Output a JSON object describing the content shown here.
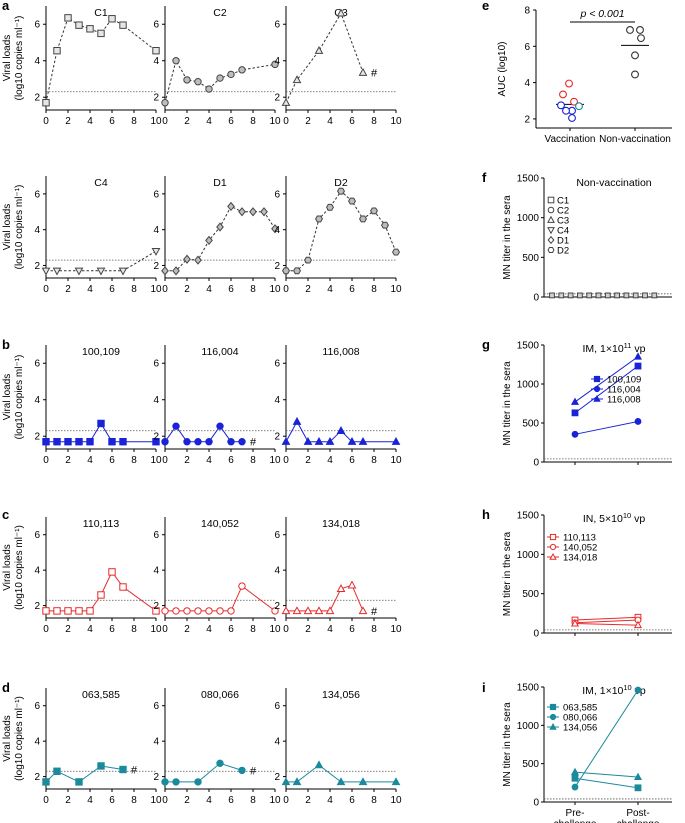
{
  "panel_labels": [
    "a",
    "b",
    "c",
    "d",
    "e",
    "f",
    "g",
    "h",
    "i"
  ],
  "viral_ylabel": [
    "Viral loads",
    "(log10 copies ml⁻¹)"
  ],
  "mn_ylabel": "MN titer in the sera",
  "hash_mark": "#",
  "colors": {
    "control": "#555555",
    "im11": "#1a23d6",
    "in10": "#e82a2a",
    "im10": "#1a8a9c"
  },
  "chart_data": [
    {
      "type": "line",
      "id": "C1",
      "title": "C1",
      "group": "control",
      "marker": "square",
      "dashed": true,
      "x": [
        0,
        1,
        2,
        3,
        4,
        5,
        6,
        7,
        10
      ],
      "y": [
        1.7,
        4.55,
        6.35,
        5.95,
        5.75,
        5.5,
        6.3,
        5.95,
        4.55
      ],
      "xlim": [
        0,
        10
      ],
      "ylim": [
        1.3,
        7
      ],
      "xticks": [
        0,
        2,
        4,
        6,
        8,
        10
      ],
      "yticks": [
        2,
        4,
        6
      ],
      "threshold": 2.3,
      "hash": false
    },
    {
      "type": "line",
      "id": "C2",
      "title": "C2",
      "group": "control",
      "marker": "circle",
      "dashed": true,
      "x": [
        0,
        1,
        2,
        3,
        4,
        5,
        6,
        7,
        10
      ],
      "y": [
        1.7,
        4.0,
        2.95,
        2.85,
        2.45,
        3.05,
        3.25,
        3.5,
        3.8
      ],
      "xlim": [
        0,
        10
      ],
      "ylim": [
        1.3,
        7
      ],
      "xticks": [
        0,
        2,
        4,
        6,
        8,
        10
      ],
      "yticks": [
        2,
        4,
        6
      ],
      "threshold": 2.3,
      "hash": false
    },
    {
      "type": "line",
      "id": "C3",
      "title": "C3",
      "group": "control",
      "marker": "triangle",
      "dashed": true,
      "x": [
        0,
        1,
        3,
        5,
        7
      ],
      "y": [
        1.7,
        2.95,
        4.55,
        6.6,
        3.35
      ],
      "xlim": [
        0,
        10
      ],
      "ylim": [
        1.3,
        7
      ],
      "xticks": [
        0,
        2,
        4,
        6,
        8,
        10
      ],
      "yticks": [
        2,
        4,
        6
      ],
      "threshold": 2.3,
      "hash": true
    },
    {
      "type": "line",
      "id": "C4",
      "title": "C4",
      "group": "control",
      "marker": "triangle-down",
      "dashed": true,
      "x": [
        0,
        1,
        3,
        5,
        7,
        10
      ],
      "y": [
        1.7,
        1.7,
        1.7,
        1.7,
        1.7,
        2.8
      ],
      "xlim": [
        0,
        10
      ],
      "ylim": [
        1.3,
        7
      ],
      "xticks": [
        0,
        2,
        4,
        6,
        8,
        10
      ],
      "yticks": [
        2,
        4,
        6
      ],
      "threshold": 2.3,
      "hash": false
    },
    {
      "type": "line",
      "id": "D1",
      "title": "D1",
      "group": "control",
      "marker": "diamond",
      "dashed": true,
      "x": [
        0,
        1,
        2,
        3,
        4,
        5,
        6,
        7,
        8,
        9,
        10
      ],
      "y": [
        1.7,
        1.7,
        2.35,
        2.3,
        3.4,
        4.15,
        5.3,
        5.0,
        5.0,
        5.0,
        4.05
      ],
      "xlim": [
        0,
        10
      ],
      "ylim": [
        1.3,
        7
      ],
      "xticks": [
        0,
        2,
        4,
        6,
        8,
        10
      ],
      "yticks": [
        2,
        4,
        6
      ],
      "threshold": 2.3,
      "hash": false
    },
    {
      "type": "line",
      "id": "D2",
      "title": "D2",
      "group": "control",
      "marker": "hexagon",
      "dashed": true,
      "x": [
        0,
        1,
        2,
        3,
        4,
        5,
        6,
        7,
        8,
        9,
        10
      ],
      "y": [
        1.7,
        1.7,
        2.3,
        4.6,
        5.25,
        6.15,
        5.6,
        4.6,
        5.05,
        4.25,
        2.75
      ],
      "xlim": [
        0,
        10
      ],
      "ylim": [
        1.3,
        7
      ],
      "xticks": [
        0,
        2,
        4,
        6,
        8,
        10
      ],
      "yticks": [
        2,
        4,
        6
      ],
      "threshold": 2.3,
      "hash": false
    },
    {
      "type": "line",
      "id": "100109",
      "title": "100,109",
      "group": "im11",
      "marker": "square",
      "filled": true,
      "x": [
        0,
        1,
        2,
        3,
        4,
        5,
        6,
        7,
        10
      ],
      "y": [
        1.7,
        1.7,
        1.7,
        1.7,
        1.7,
        2.7,
        1.7,
        1.7,
        1.7
      ],
      "xlim": [
        0,
        10
      ],
      "ylim": [
        1.3,
        7
      ],
      "xticks": [
        0,
        2,
        4,
        6,
        8,
        10
      ],
      "yticks": [
        2,
        4,
        6
      ],
      "threshold": 2.3,
      "hash": false
    },
    {
      "type": "line",
      "id": "116004",
      "title": "116,004",
      "group": "im11",
      "marker": "circle",
      "filled": true,
      "x": [
        0,
        1,
        2,
        3,
        4,
        5,
        6,
        7
      ],
      "y": [
        1.7,
        2.55,
        1.7,
        1.7,
        1.7,
        2.55,
        1.7,
        1.7
      ],
      "xlim": [
        0,
        10
      ],
      "ylim": [
        1.3,
        7
      ],
      "xticks": [
        0,
        2,
        4,
        6,
        8,
        10
      ],
      "yticks": [
        2,
        4,
        6
      ],
      "threshold": 2.3,
      "hash": true
    },
    {
      "type": "line",
      "id": "116008",
      "title": "116,008",
      "group": "im11",
      "marker": "triangle",
      "filled": true,
      "x": [
        0,
        1,
        2,
        3,
        4,
        5,
        6,
        7,
        10
      ],
      "y": [
        1.7,
        2.8,
        1.7,
        1.7,
        1.7,
        2.3,
        1.7,
        1.7,
        1.7
      ],
      "xlim": [
        0,
        10
      ],
      "ylim": [
        1.3,
        7
      ],
      "xticks": [
        0,
        2,
        4,
        6,
        8,
        10
      ],
      "yticks": [
        2,
        4,
        6
      ],
      "threshold": 2.3,
      "hash": false
    },
    {
      "type": "line",
      "id": "110113",
      "title": "110,113",
      "group": "in10",
      "marker": "square",
      "filled": false,
      "x": [
        0,
        1,
        2,
        3,
        4,
        5,
        6,
        7,
        10
      ],
      "y": [
        1.7,
        1.7,
        1.7,
        1.7,
        1.7,
        2.6,
        3.9,
        3.05,
        1.7
      ],
      "xlim": [
        0,
        10
      ],
      "ylim": [
        1.3,
        7
      ],
      "xticks": [
        0,
        2,
        4,
        6,
        8,
        10
      ],
      "yticks": [
        2,
        4,
        6
      ],
      "threshold": 2.3,
      "hash": false
    },
    {
      "type": "line",
      "id": "140052",
      "title": "140,052",
      "group": "in10",
      "marker": "circle",
      "filled": false,
      "x": [
        0,
        1,
        2,
        3,
        4,
        5,
        6,
        7,
        10
      ],
      "y": [
        1.7,
        1.7,
        1.7,
        1.7,
        1.7,
        1.7,
        1.7,
        3.1,
        1.7
      ],
      "xlim": [
        0,
        10
      ],
      "ylim": [
        1.3,
        7
      ],
      "xticks": [
        0,
        2,
        4,
        6,
        8,
        10
      ],
      "yticks": [
        2,
        4,
        6
      ],
      "threshold": 2.3,
      "hash": false
    },
    {
      "type": "line",
      "id": "134018",
      "title": "134,018",
      "group": "in10",
      "marker": "triangle",
      "filled": false,
      "x": [
        0,
        1,
        2,
        3,
        4,
        5,
        6,
        7
      ],
      "y": [
        1.7,
        1.7,
        1.7,
        1.7,
        1.7,
        2.95,
        3.15,
        1.7
      ],
      "xlim": [
        0,
        10
      ],
      "ylim": [
        1.3,
        7
      ],
      "xticks": [
        0,
        2,
        4,
        6,
        8,
        10
      ],
      "yticks": [
        2,
        4,
        6
      ],
      "threshold": 2.3,
      "hash": true
    },
    {
      "type": "line",
      "id": "063585",
      "title": "063,585",
      "group": "im10",
      "marker": "square",
      "filled": true,
      "x": [
        0,
        1,
        3,
        5,
        7
      ],
      "y": [
        1.7,
        2.3,
        1.7,
        2.6,
        2.4
      ],
      "xlim": [
        0,
        10
      ],
      "ylim": [
        1.3,
        7
      ],
      "xticks": [
        0,
        2,
        4,
        6,
        8,
        10
      ],
      "yticks": [
        2,
        4,
        6
      ],
      "threshold": 2.3,
      "hash": true
    },
    {
      "type": "line",
      "id": "080066",
      "title": "080,066",
      "group": "im10",
      "marker": "circle",
      "filled": true,
      "x": [
        0,
        1,
        3,
        5,
        7
      ],
      "y": [
        1.7,
        1.7,
        1.7,
        2.75,
        2.35
      ],
      "xlim": [
        0,
        10
      ],
      "ylim": [
        1.3,
        7
      ],
      "xticks": [
        0,
        2,
        4,
        6,
        8,
        10
      ],
      "yticks": [
        2,
        4,
        6
      ],
      "threshold": 2.3,
      "hash": true
    },
    {
      "type": "line",
      "id": "134056",
      "title": "134,056",
      "group": "im10",
      "marker": "triangle",
      "filled": true,
      "x": [
        0,
        1,
        3,
        5,
        7,
        10
      ],
      "y": [
        1.7,
        1.7,
        2.65,
        1.7,
        1.7,
        1.7
      ],
      "xlim": [
        0,
        10
      ],
      "ylim": [
        1.3,
        7
      ],
      "xticks": [
        0,
        2,
        4,
        6,
        8,
        10
      ],
      "yticks": [
        2,
        4,
        6
      ],
      "threshold": 2.3,
      "hash": false
    },
    {
      "type": "scatter",
      "id": "e",
      "ylabel": "AUC (log10)",
      "categories": [
        "Vaccination",
        "Non-vaccination"
      ],
      "annotation": "p < 0.001",
      "ylim": [
        1.5,
        8
      ],
      "yticks": [
        2,
        4,
        6,
        8
      ],
      "series": [
        {
          "category": "Vaccination",
          "points": [
            {
              "y": 3.95,
              "group": "in10"
            },
            {
              "y": 3.35,
              "group": "in10"
            },
            {
              "y": 2.95,
              "group": "in10"
            },
            {
              "y": 2.75,
              "group": "im11"
            },
            {
              "y": 2.7,
              "group": "im10"
            },
            {
              "y": 2.45,
              "group": "im11"
            },
            {
              "y": 2.45,
              "group": "im11"
            },
            {
              "y": 2.05,
              "group": "im11"
            }
          ],
          "mean": 2.8
        },
        {
          "category": "Non-vaccination",
          "points": [
            {
              "y": 6.9,
              "group": "control"
            },
            {
              "y": 6.9,
              "group": "control"
            },
            {
              "y": 6.45,
              "group": "control"
            },
            {
              "y": 5.5,
              "group": "control"
            },
            {
              "y": 4.45,
              "group": "control"
            }
          ],
          "mean": 6.05
        }
      ]
    },
    {
      "type": "scatter",
      "id": "f",
      "title": "Non-vaccination",
      "ylim": [
        0,
        1500
      ],
      "yticks": [
        0,
        500,
        1000,
        1500
      ],
      "threshold": 40,
      "values": [
        20,
        20,
        20,
        20,
        20,
        20,
        20,
        20,
        20,
        20,
        20,
        20
      ],
      "legend": [
        "C1",
        "C2",
        "C3",
        "C4",
        "D1",
        "D2"
      ],
      "legend_markers": [
        "square",
        "circle",
        "triangle",
        "triangle-down",
        "diamond",
        "hexagon"
      ]
    },
    {
      "type": "line",
      "id": "g",
      "title_prefix": "IM, 1×10",
      "title_exp": "11",
      "title_suffix": " vp",
      "group": "im11",
      "ylim": [
        0,
        1500
      ],
      "yticks": [
        0,
        500,
        1000,
        1500
      ],
      "threshold": 40,
      "series": [
        {
          "name": "100,109",
          "marker": "square",
          "values": [
            630,
            1230
          ]
        },
        {
          "name": "116,004",
          "marker": "circle",
          "values": [
            355,
            520
          ]
        },
        {
          "name": "116,008",
          "marker": "triangle",
          "values": [
            770,
            1350
          ]
        }
      ],
      "filled": true
    },
    {
      "type": "line",
      "id": "h",
      "title_prefix": "IN, 5×10",
      "title_exp": "10",
      "title_suffix": " vp",
      "group": "in10",
      "ylim": [
        0,
        1500
      ],
      "yticks": [
        0,
        500,
        1000,
        1500
      ],
      "threshold": 40,
      "series": [
        {
          "name": "110,113",
          "marker": "square",
          "values": [
            165,
            200
          ]
        },
        {
          "name": "140,052",
          "marker": "circle",
          "values": [
            130,
            165
          ]
        },
        {
          "name": "134,018",
          "marker": "triangle",
          "values": [
            120,
            100
          ]
        }
      ],
      "filled": false
    },
    {
      "type": "line",
      "id": "i",
      "title_prefix": "IM, 1×10",
      "title_exp": "10",
      "title_suffix": " vp",
      "group": "im10",
      "ylim": [
        0,
        1500
      ],
      "yticks": [
        0,
        500,
        1000,
        1500
      ],
      "threshold": 40,
      "series": [
        {
          "name": "063,585",
          "marker": "square",
          "values": [
            310,
            185
          ]
        },
        {
          "name": "080,066",
          "marker": "circle",
          "values": [
            195,
            1460
          ]
        },
        {
          "name": "134,056",
          "marker": "triangle",
          "values": [
            390,
            325
          ]
        }
      ],
      "filled": true,
      "categories": [
        [
          "Pre-",
          "challenge"
        ],
        [
          "Post-",
          "challenge"
        ]
      ]
    }
  ]
}
